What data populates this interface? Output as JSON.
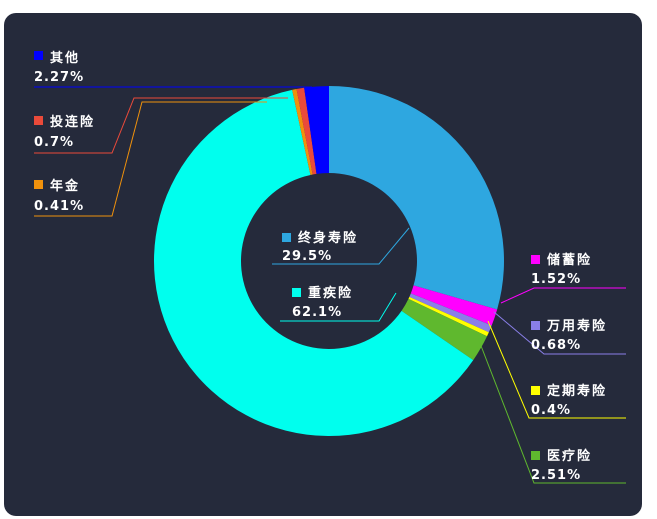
{
  "chart_data": {
    "type": "pie",
    "donut": true,
    "start_angle_deg": 0,
    "clockwise": true,
    "slices": [
      {
        "label": "终身寿险",
        "value": 29.5,
        "display": "29.5%",
        "color": "#2ea7e0"
      },
      {
        "label": "储蓄险",
        "value": 1.52,
        "display": "1.52%",
        "color": "#ff00ff"
      },
      {
        "label": "万用寿险",
        "value": 0.68,
        "display": "0.68%",
        "color": "#8a7fe8"
      },
      {
        "label": "定期寿险",
        "value": 0.4,
        "display": "0.4%",
        "color": "#ffff00"
      },
      {
        "label": "医疗险",
        "value": 2.51,
        "display": "2.51%",
        "color": "#5fb82e"
      },
      {
        "label": "重疾险",
        "value": 62.1,
        "display": "62.1%",
        "color": "#00ffee"
      },
      {
        "label": "年金",
        "value": 0.41,
        "display": "0.41%",
        "color": "#f0910c"
      },
      {
        "label": "投连险",
        "value": 0.7,
        "display": "0.7%",
        "color": "#ea4a3a"
      },
      {
        "label": "其他",
        "value": 2.27,
        "display": "2.27%",
        "color": "#0000ff"
      }
    ]
  },
  "colors": {
    "background": "#252a3b",
    "hole": "#252a3b"
  }
}
